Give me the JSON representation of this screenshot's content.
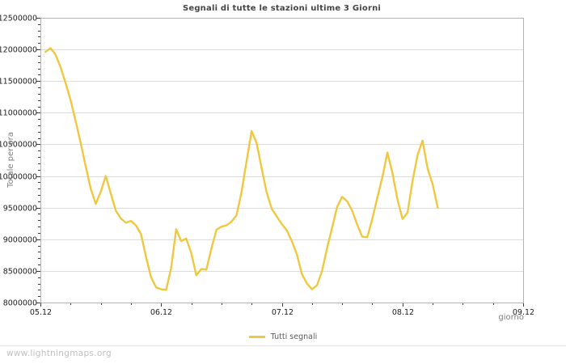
{
  "title": "Segnali di tutte le stazioni ultime 3 Giorni",
  "legend": {
    "label": "Tutti segnali"
  },
  "footer": {
    "watermark": "www.lightningmaps.org"
  },
  "colors": {
    "line": "#efc840",
    "grid": "#dcdcdc",
    "border": "#b3b3b3",
    "tick": "#3a3a3a",
    "tick_text": "#1c1c1c",
    "muted_text": "#7d7d7d"
  },
  "chart_data": {
    "type": "line",
    "title": "Segnali di tutte le stazioni ultime 3 Giorni",
    "xlabel": "giorno",
    "ylabel": "Totale per ora",
    "legend_position": "bottom-center",
    "grid": "horizontal-only",
    "x_tick_labels": [
      "05.12",
      "06.12",
      "07.12",
      "08.12",
      "09.12"
    ],
    "x_minor_divisions_per_day": 4,
    "ylim": [
      8000000,
      12500000
    ],
    "y_major_step": 500000,
    "y_minor_step": 100000,
    "series": [
      {
        "name": "Tutti segnali",
        "color": "#efc840",
        "start_hour_offset": 1,
        "hours_per_point": 1,
        "values": [
          11960000,
          12020000,
          11920000,
          11720000,
          11470000,
          11200000,
          10870000,
          10520000,
          10150000,
          9800000,
          9560000,
          9750000,
          10000000,
          9720000,
          9450000,
          9330000,
          9260000,
          9290000,
          9220000,
          9080000,
          8720000,
          8400000,
          8240000,
          8210000,
          8200000,
          8550000,
          9160000,
          8970000,
          9010000,
          8780000,
          8430000,
          8530000,
          8520000,
          8850000,
          9150000,
          9200000,
          9220000,
          9280000,
          9380000,
          9750000,
          10240000,
          10710000,
          10520000,
          10120000,
          9740000,
          9480000,
          9360000,
          9240000,
          9140000,
          8970000,
          8760000,
          8450000,
          8300000,
          8210000,
          8270000,
          8500000,
          8860000,
          9180000,
          9510000,
          9670000,
          9600000,
          9450000,
          9230000,
          9040000,
          9030000,
          9320000,
          9660000,
          9980000,
          10370000,
          10050000,
          9630000,
          9320000,
          9420000,
          9920000,
          10330000,
          10560000,
          10120000,
          9870000,
          9500000
        ]
      }
    ]
  }
}
